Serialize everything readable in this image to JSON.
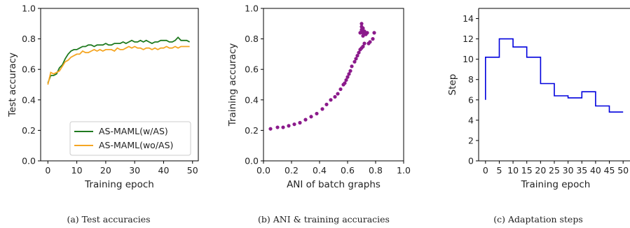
{
  "chart_data": [
    {
      "type": "line",
      "caption": "(a) Test accuracies",
      "xlabel": "Training epoch",
      "ylabel": "Test accuracy",
      "xlim": [
        -2.5,
        52
      ],
      "ylim": [
        0.0,
        1.0
      ],
      "xticks": [
        0,
        10,
        20,
        30,
        40,
        50
      ],
      "yticks": [
        0.0,
        0.2,
        0.4,
        0.6,
        0.8,
        1.0
      ],
      "xtick_labels": [
        "0",
        "10",
        "20",
        "30",
        "40",
        "50"
      ],
      "ytick_labels": [
        "0.0",
        "0.2",
        "0.4",
        "0.6",
        "0.8",
        "1.0"
      ],
      "legend_position": "lower-right",
      "series": [
        {
          "name": "AS-MAML(w/AS)",
          "color": "#1f7a1f",
          "x": [
            0,
            1,
            2,
            3,
            4,
            5,
            6,
            7,
            8,
            9,
            10,
            11,
            12,
            13,
            14,
            15,
            16,
            17,
            18,
            19,
            20,
            21,
            22,
            23,
            24,
            25,
            26,
            27,
            28,
            29,
            30,
            31,
            32,
            33,
            34,
            35,
            36,
            37,
            38,
            39,
            40,
            41,
            42,
            43,
            44,
            45,
            46,
            47,
            48,
            49
          ],
          "y": [
            0.51,
            0.56,
            0.56,
            0.57,
            0.61,
            0.63,
            0.67,
            0.7,
            0.72,
            0.73,
            0.73,
            0.74,
            0.75,
            0.75,
            0.76,
            0.76,
            0.75,
            0.76,
            0.76,
            0.76,
            0.77,
            0.76,
            0.76,
            0.77,
            0.77,
            0.77,
            0.78,
            0.77,
            0.78,
            0.79,
            0.78,
            0.78,
            0.79,
            0.78,
            0.79,
            0.78,
            0.77,
            0.78,
            0.78,
            0.79,
            0.79,
            0.79,
            0.78,
            0.78,
            0.79,
            0.81,
            0.79,
            0.79,
            0.79,
            0.78
          ]
        },
        {
          "name": "AS-MAML(wo/AS)",
          "color": "#f5a623",
          "x": [
            0,
            1,
            2,
            3,
            4,
            5,
            6,
            7,
            8,
            9,
            10,
            11,
            12,
            13,
            14,
            15,
            16,
            17,
            18,
            19,
            20,
            21,
            22,
            23,
            24,
            25,
            26,
            27,
            28,
            29,
            30,
            31,
            32,
            33,
            34,
            35,
            36,
            37,
            38,
            39,
            40,
            41,
            42,
            43,
            44,
            45,
            46,
            47,
            48,
            49
          ],
          "y": [
            0.5,
            0.58,
            0.57,
            0.58,
            0.59,
            0.62,
            0.65,
            0.66,
            0.68,
            0.69,
            0.7,
            0.7,
            0.72,
            0.71,
            0.71,
            0.72,
            0.73,
            0.72,
            0.73,
            0.72,
            0.73,
            0.73,
            0.73,
            0.72,
            0.74,
            0.73,
            0.73,
            0.74,
            0.75,
            0.74,
            0.75,
            0.74,
            0.74,
            0.73,
            0.74,
            0.74,
            0.73,
            0.74,
            0.73,
            0.74,
            0.74,
            0.75,
            0.74,
            0.74,
            0.75,
            0.74,
            0.75,
            0.75,
            0.75,
            0.75
          ]
        }
      ]
    },
    {
      "type": "scatter",
      "caption": "(b) ANI & training accuracies",
      "xlabel": "ANI of batch graphs",
      "ylabel": "Training accuracy",
      "xlim": [
        0.0,
        1.0
      ],
      "ylim": [
        0.0,
        1.0
      ],
      "xticks": [
        0.0,
        0.2,
        0.4,
        0.6,
        0.8,
        1.0
      ],
      "yticks": [
        0.0,
        0.2,
        0.4,
        0.6,
        0.8,
        1.0
      ],
      "xtick_labels": [
        "0.0",
        "0.2",
        "0.4",
        "0.6",
        "0.8",
        "1.0"
      ],
      "ytick_labels": [
        "0.0",
        "0.2",
        "0.4",
        "0.6",
        "0.8",
        "1.0"
      ],
      "series": [
        {
          "color": "#8b1a8b",
          "x": [
            0.05,
            0.1,
            0.14,
            0.18,
            0.22,
            0.26,
            0.3,
            0.34,
            0.38,
            0.42,
            0.45,
            0.48,
            0.51,
            0.53,
            0.55,
            0.57,
            0.58,
            0.59,
            0.6,
            0.61,
            0.62,
            0.63,
            0.65,
            0.66,
            0.67,
            0.68,
            0.69,
            0.7,
            0.71,
            0.72,
            0.73,
            0.69,
            0.7,
            0.71,
            0.72,
            0.73,
            0.74,
            0.7,
            0.71,
            0.73,
            0.75,
            0.76,
            0.78,
            0.79,
            0.7,
            0.7,
            0.71
          ],
          "y": [
            0.21,
            0.22,
            0.22,
            0.23,
            0.24,
            0.25,
            0.27,
            0.29,
            0.31,
            0.34,
            0.37,
            0.4,
            0.42,
            0.44,
            0.47,
            0.5,
            0.51,
            0.53,
            0.55,
            0.57,
            0.59,
            0.62,
            0.65,
            0.67,
            0.69,
            0.71,
            0.73,
            0.74,
            0.75,
            0.77,
            0.83,
            0.84,
            0.85,
            0.84,
            0.85,
            0.84,
            0.84,
            0.86,
            0.87,
            0.83,
            0.77,
            0.78,
            0.8,
            0.84,
            0.88,
            0.9,
            0.82
          ]
        }
      ]
    },
    {
      "type": "line",
      "caption": "(c) Adaptation steps",
      "xlabel": "Training epoch",
      "ylabel": "Step",
      "xlim": [
        -2.5,
        52.5
      ],
      "ylim": [
        0,
        15
      ],
      "xticks": [
        0,
        5,
        10,
        15,
        20,
        25,
        30,
        35,
        40,
        45,
        50
      ],
      "yticks": [
        0,
        2,
        4,
        6,
        8,
        10,
        12,
        14
      ],
      "xtick_labels": [
        "0",
        "5",
        "10",
        "15",
        "20",
        "25",
        "30",
        "35",
        "40",
        "45",
        "50"
      ],
      "ytick_labels": [
        "0",
        "2",
        "4",
        "6",
        "8",
        "10",
        "12",
        "14"
      ],
      "series": [
        {
          "color": "#0000dd",
          "x": [
            0,
            0,
            5,
            5,
            10,
            10,
            15,
            15,
            20,
            20,
            25,
            25,
            30,
            30,
            35,
            35,
            40,
            40,
            45,
            45,
            50
          ],
          "y": [
            6,
            10.2,
            10.2,
            12,
            12,
            11.2,
            11.2,
            10.2,
            10.2,
            7.6,
            7.6,
            6.4,
            6.4,
            6.2,
            6.2,
            6.8,
            6.8,
            5.4,
            5.4,
            4.8,
            4.8
          ]
        }
      ]
    }
  ]
}
